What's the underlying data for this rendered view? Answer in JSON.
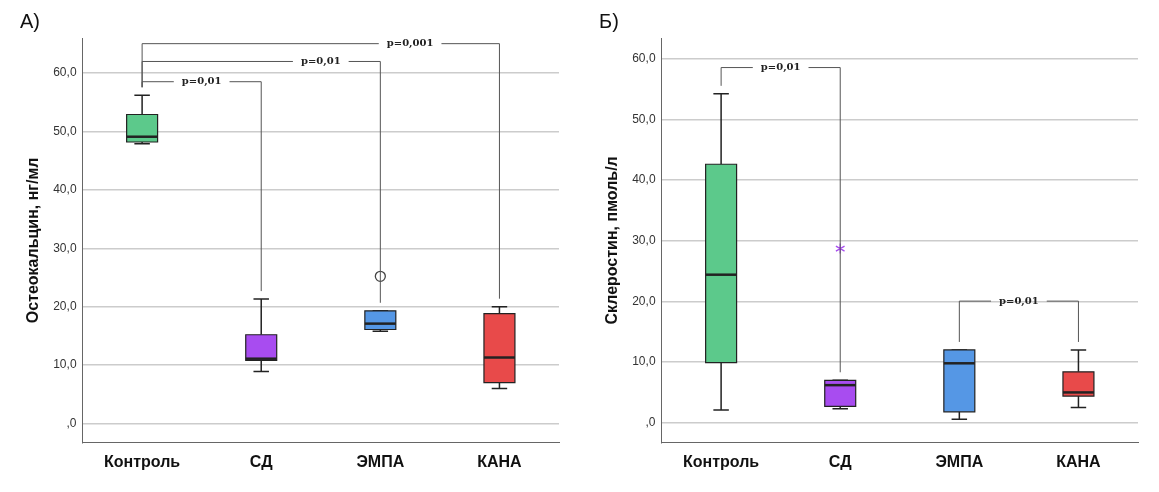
{
  "chart_data": [
    {
      "type": "box",
      "title": "А)",
      "ylabel": "Остеокальцин, нг/мл",
      "categories": [
        "Контроль",
        "СД",
        "ЭМПА",
        "КАНА"
      ],
      "colors": [
        "#5cc98b",
        "#a84cf0",
        "#5597e5",
        "#e84a4a"
      ],
      "boxes": [
        {
          "low": 47.9,
          "q1": 48.2,
          "median": 49.1,
          "q3": 52.9,
          "high": 56.2
        },
        {
          "low": 8.9,
          "q1": 10.8,
          "median": 11.1,
          "q3": 15.2,
          "high": 21.3
        },
        {
          "low": 15.8,
          "q1": 16.1,
          "median": 17.1,
          "q3": 19.3,
          "high": 19.3,
          "outliers": [
            25.2
          ]
        },
        {
          "low": 6.0,
          "q1": 7.0,
          "median": 11.3,
          "q3": 18.8,
          "high": 20.0
        }
      ],
      "ylim": [
        -3.3,
        66
      ],
      "yticks": [
        {
          "value": 0,
          "label": ",0"
        },
        {
          "value": 10,
          "label": "10,0"
        },
        {
          "value": 20,
          "label": "20,0"
        },
        {
          "value": 30,
          "label": "30,0"
        },
        {
          "value": 40,
          "label": "40,0"
        },
        {
          "value": 50,
          "label": "50,0"
        },
        {
          "value": 60,
          "label": "60,0"
        }
      ],
      "grid": "y",
      "marker": "circle",
      "annotations": [
        "p=0,01",
        "p=0,01",
        "p=0,001"
      ]
    },
    {
      "type": "box",
      "title": "Б)",
      "ylabel": "Склеростин, пмоль/л",
      "categories": [
        "Контроль",
        "СД",
        "ЭМПА",
        "КАНА"
      ],
      "colors": [
        "#5cc98b",
        "#a84cf0",
        "#5597e5",
        "#e84a4a"
      ],
      "boxes": [
        {
          "low": 2.1,
          "q1": 9.9,
          "median": 24.4,
          "q3": 42.6,
          "high": 54.2
        },
        {
          "low": 2.3,
          "q1": 2.7,
          "median": 6.2,
          "q3": 7.0,
          "high": 7.0,
          "outliers": [
            28.7
          ]
        },
        {
          "low": 0.6,
          "q1": 1.8,
          "median": 9.8,
          "q3": 12.0,
          "high": 12.0
        },
        {
          "low": 2.5,
          "q1": 4.4,
          "median": 5.0,
          "q3": 8.4,
          "high": 12.0
        }
      ],
      "ylim": [
        -3.3,
        63.4
      ],
      "yticks": [
        {
          "value": 0,
          "label": ",0"
        },
        {
          "value": 10,
          "label": "10,0"
        },
        {
          "value": 20,
          "label": "20,0"
        },
        {
          "value": 30,
          "label": "30,0"
        },
        {
          "value": 40,
          "label": "40,0"
        },
        {
          "value": 50,
          "label": "50,0"
        },
        {
          "value": 60,
          "label": "60,0"
        }
      ],
      "grid": "y",
      "marker": "star",
      "annotations": [
        "p=0,01",
        "p=0,01"
      ]
    }
  ]
}
